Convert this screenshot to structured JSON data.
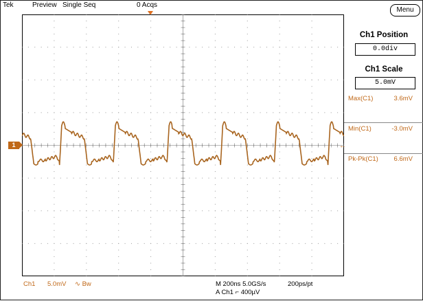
{
  "status_bar": {
    "brand": "Tek",
    "mode": "Preview",
    "acq_mode": "Single Seq",
    "acq_count": "0 Acqs"
  },
  "channel_marker": "1",
  "trigger_level_marker": "←",
  "bottom_bar": {
    "channel": "Ch1",
    "volts_div": "5.0mV",
    "bw_label": "∿ Bw",
    "timebase": "M 200ns 5.0GS/s",
    "resolution": "200ps/pt",
    "trigger": "A  Ch1  ⌐  400µV"
  },
  "side_menu": {
    "menu_button": "Menu",
    "position_title": "Ch1 Position",
    "position_value": "0.0div",
    "scale_title": "Ch1 Scale",
    "scale_value": "5.0mV",
    "measurements": [
      {
        "label": "Max(C1)",
        "value": "3.6mV"
      },
      {
        "label": "Min(C1)",
        "value": "-3.0mV"
      },
      {
        "label": "Pk-Pk(C1)",
        "value": "6.6mV"
      }
    ]
  },
  "colors": {
    "trace": "#a8641e",
    "channel_accent": "#c06818",
    "grid_dots": "#9a9a9a"
  },
  "waveform": {
    "periods": 6,
    "volts_per_div": 5.0,
    "h_divisions": 10,
    "v_divisions": 8,
    "offset_div": 0.0,
    "max_mv": 3.6,
    "min_mv": -3.0
  }
}
